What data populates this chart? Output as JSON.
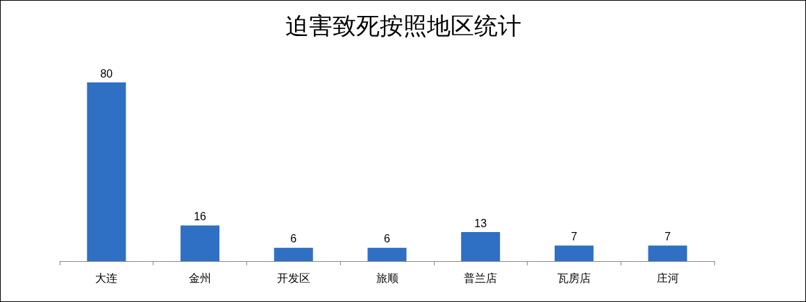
{
  "chart_data": {
    "type": "bar",
    "title": "迫害致死按照地区统计",
    "categories": [
      "大连",
      "金州",
      "开发区",
      "旅顺",
      "普兰店",
      "瓦房店",
      "庄河"
    ],
    "values": [
      80,
      16,
      6,
      6,
      13,
      7,
      7
    ],
    "color": "#2f6fc4",
    "data_labels": true,
    "tick_labels": "x"
  }
}
